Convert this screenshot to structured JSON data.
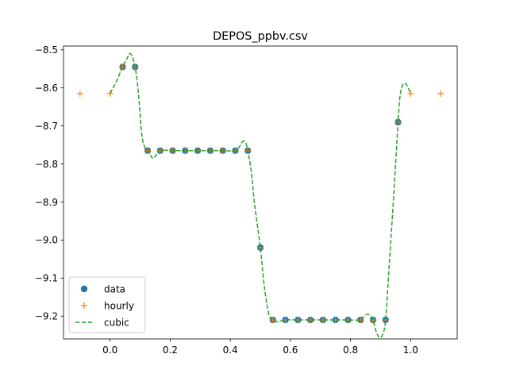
{
  "chart_data": {
    "type": "line",
    "title": "DEPOS_ppbv.csv",
    "xlabel": "",
    "ylabel": "",
    "xlim": [
      -0.155,
      1.155
    ],
    "ylim": [
      -9.26,
      -8.49
    ],
    "xticks": [
      0.0,
      0.2,
      0.4,
      0.6,
      0.8,
      1.0
    ],
    "xtick_labels": [
      "0.0",
      "0.2",
      "0.4",
      "0.6",
      "0.8",
      "1.0"
    ],
    "yticks": [
      -8.5,
      -8.6,
      -8.7,
      -8.8,
      -8.9,
      -9.0,
      -9.1,
      -9.2
    ],
    "ytick_labels": [
      "−8.5",
      "−8.6",
      "−8.7",
      "−8.8",
      "−8.9",
      "−9.0",
      "−9.1",
      "−9.2"
    ],
    "grid": false,
    "legend": {
      "position": "lower-left",
      "entries": [
        "data",
        "hourly",
        "cubic"
      ]
    },
    "colors": {
      "data": "#1f77b4",
      "hourly": "#ff7f0e",
      "cubic": "#2ca02c"
    },
    "series": [
      {
        "name": "data",
        "style": "markers-circle",
        "x": [
          0.0417,
          0.0833,
          0.125,
          0.1667,
          0.2083,
          0.25,
          0.2917,
          0.3333,
          0.375,
          0.4167,
          0.4583,
          0.5,
          0.5417,
          0.5833,
          0.625,
          0.6667,
          0.7083,
          0.75,
          0.7917,
          0.8333,
          0.875,
          0.9167,
          0.9583
        ],
        "y": [
          -8.545,
          -8.545,
          -8.765,
          -8.765,
          -8.765,
          -8.765,
          -8.765,
          -8.765,
          -8.765,
          -8.765,
          -8.765,
          -9.02,
          -9.21,
          -9.21,
          -9.21,
          -9.21,
          -9.21,
          -9.21,
          -9.21,
          -9.21,
          -9.21,
          -9.21,
          -8.69
        ]
      },
      {
        "name": "hourly",
        "style": "markers-plus",
        "x": [
          -0.1,
          0.0,
          0.0417,
          0.0833,
          0.125,
          0.1667,
          0.2083,
          0.25,
          0.2917,
          0.3333,
          0.375,
          0.4167,
          0.4583,
          0.5,
          0.5417,
          0.5833,
          0.625,
          0.6667,
          0.7083,
          0.75,
          0.7917,
          0.8333,
          0.875,
          0.9167,
          0.9583,
          1.0,
          1.1
        ],
        "y": [
          -8.615,
          -8.615,
          -8.545,
          -8.545,
          -8.765,
          -8.765,
          -8.765,
          -8.765,
          -8.765,
          -8.765,
          -8.765,
          -8.765,
          -8.765,
          -9.02,
          -9.21,
          -9.21,
          -9.21,
          -9.21,
          -9.21,
          -9.21,
          -9.21,
          -9.21,
          -9.21,
          -9.21,
          -8.69,
          -8.615,
          -8.615
        ]
      },
      {
        "name": "cubic",
        "style": "dashed-line",
        "x": [
          0.0,
          0.02,
          0.0417,
          0.055,
          0.068,
          0.0833,
          0.095,
          0.105,
          0.115,
          0.125,
          0.135,
          0.145,
          0.1667,
          0.2083,
          0.25,
          0.2917,
          0.3333,
          0.375,
          0.4167,
          0.43,
          0.44,
          0.45,
          0.4583,
          0.47,
          0.48,
          0.5,
          0.51,
          0.52,
          0.53,
          0.5417,
          0.555,
          0.5833,
          0.625,
          0.6667,
          0.7083,
          0.75,
          0.7917,
          0.8333,
          0.845,
          0.855,
          0.865,
          0.875,
          0.885,
          0.895,
          0.905,
          0.9167,
          0.93,
          0.94,
          0.95,
          0.9583,
          0.965,
          0.975,
          0.985,
          0.992,
          1.0
        ],
        "y": [
          -8.615,
          -8.585,
          -8.545,
          -8.525,
          -8.51,
          -8.545,
          -8.62,
          -8.72,
          -8.755,
          -8.765,
          -8.778,
          -8.785,
          -8.765,
          -8.765,
          -8.765,
          -8.765,
          -8.765,
          -8.765,
          -8.765,
          -8.755,
          -8.742,
          -8.742,
          -8.765,
          -8.82,
          -8.9,
          -9.02,
          -9.1,
          -9.16,
          -9.2,
          -9.21,
          -9.215,
          -9.21,
          -9.21,
          -9.21,
          -9.21,
          -9.21,
          -9.21,
          -9.21,
          -9.2,
          -9.195,
          -9.198,
          -9.21,
          -9.24,
          -9.255,
          -9.252,
          -9.21,
          -9.05,
          -8.93,
          -8.8,
          -8.69,
          -8.62,
          -8.59,
          -8.59,
          -8.6,
          -8.615
        ]
      }
    ]
  }
}
